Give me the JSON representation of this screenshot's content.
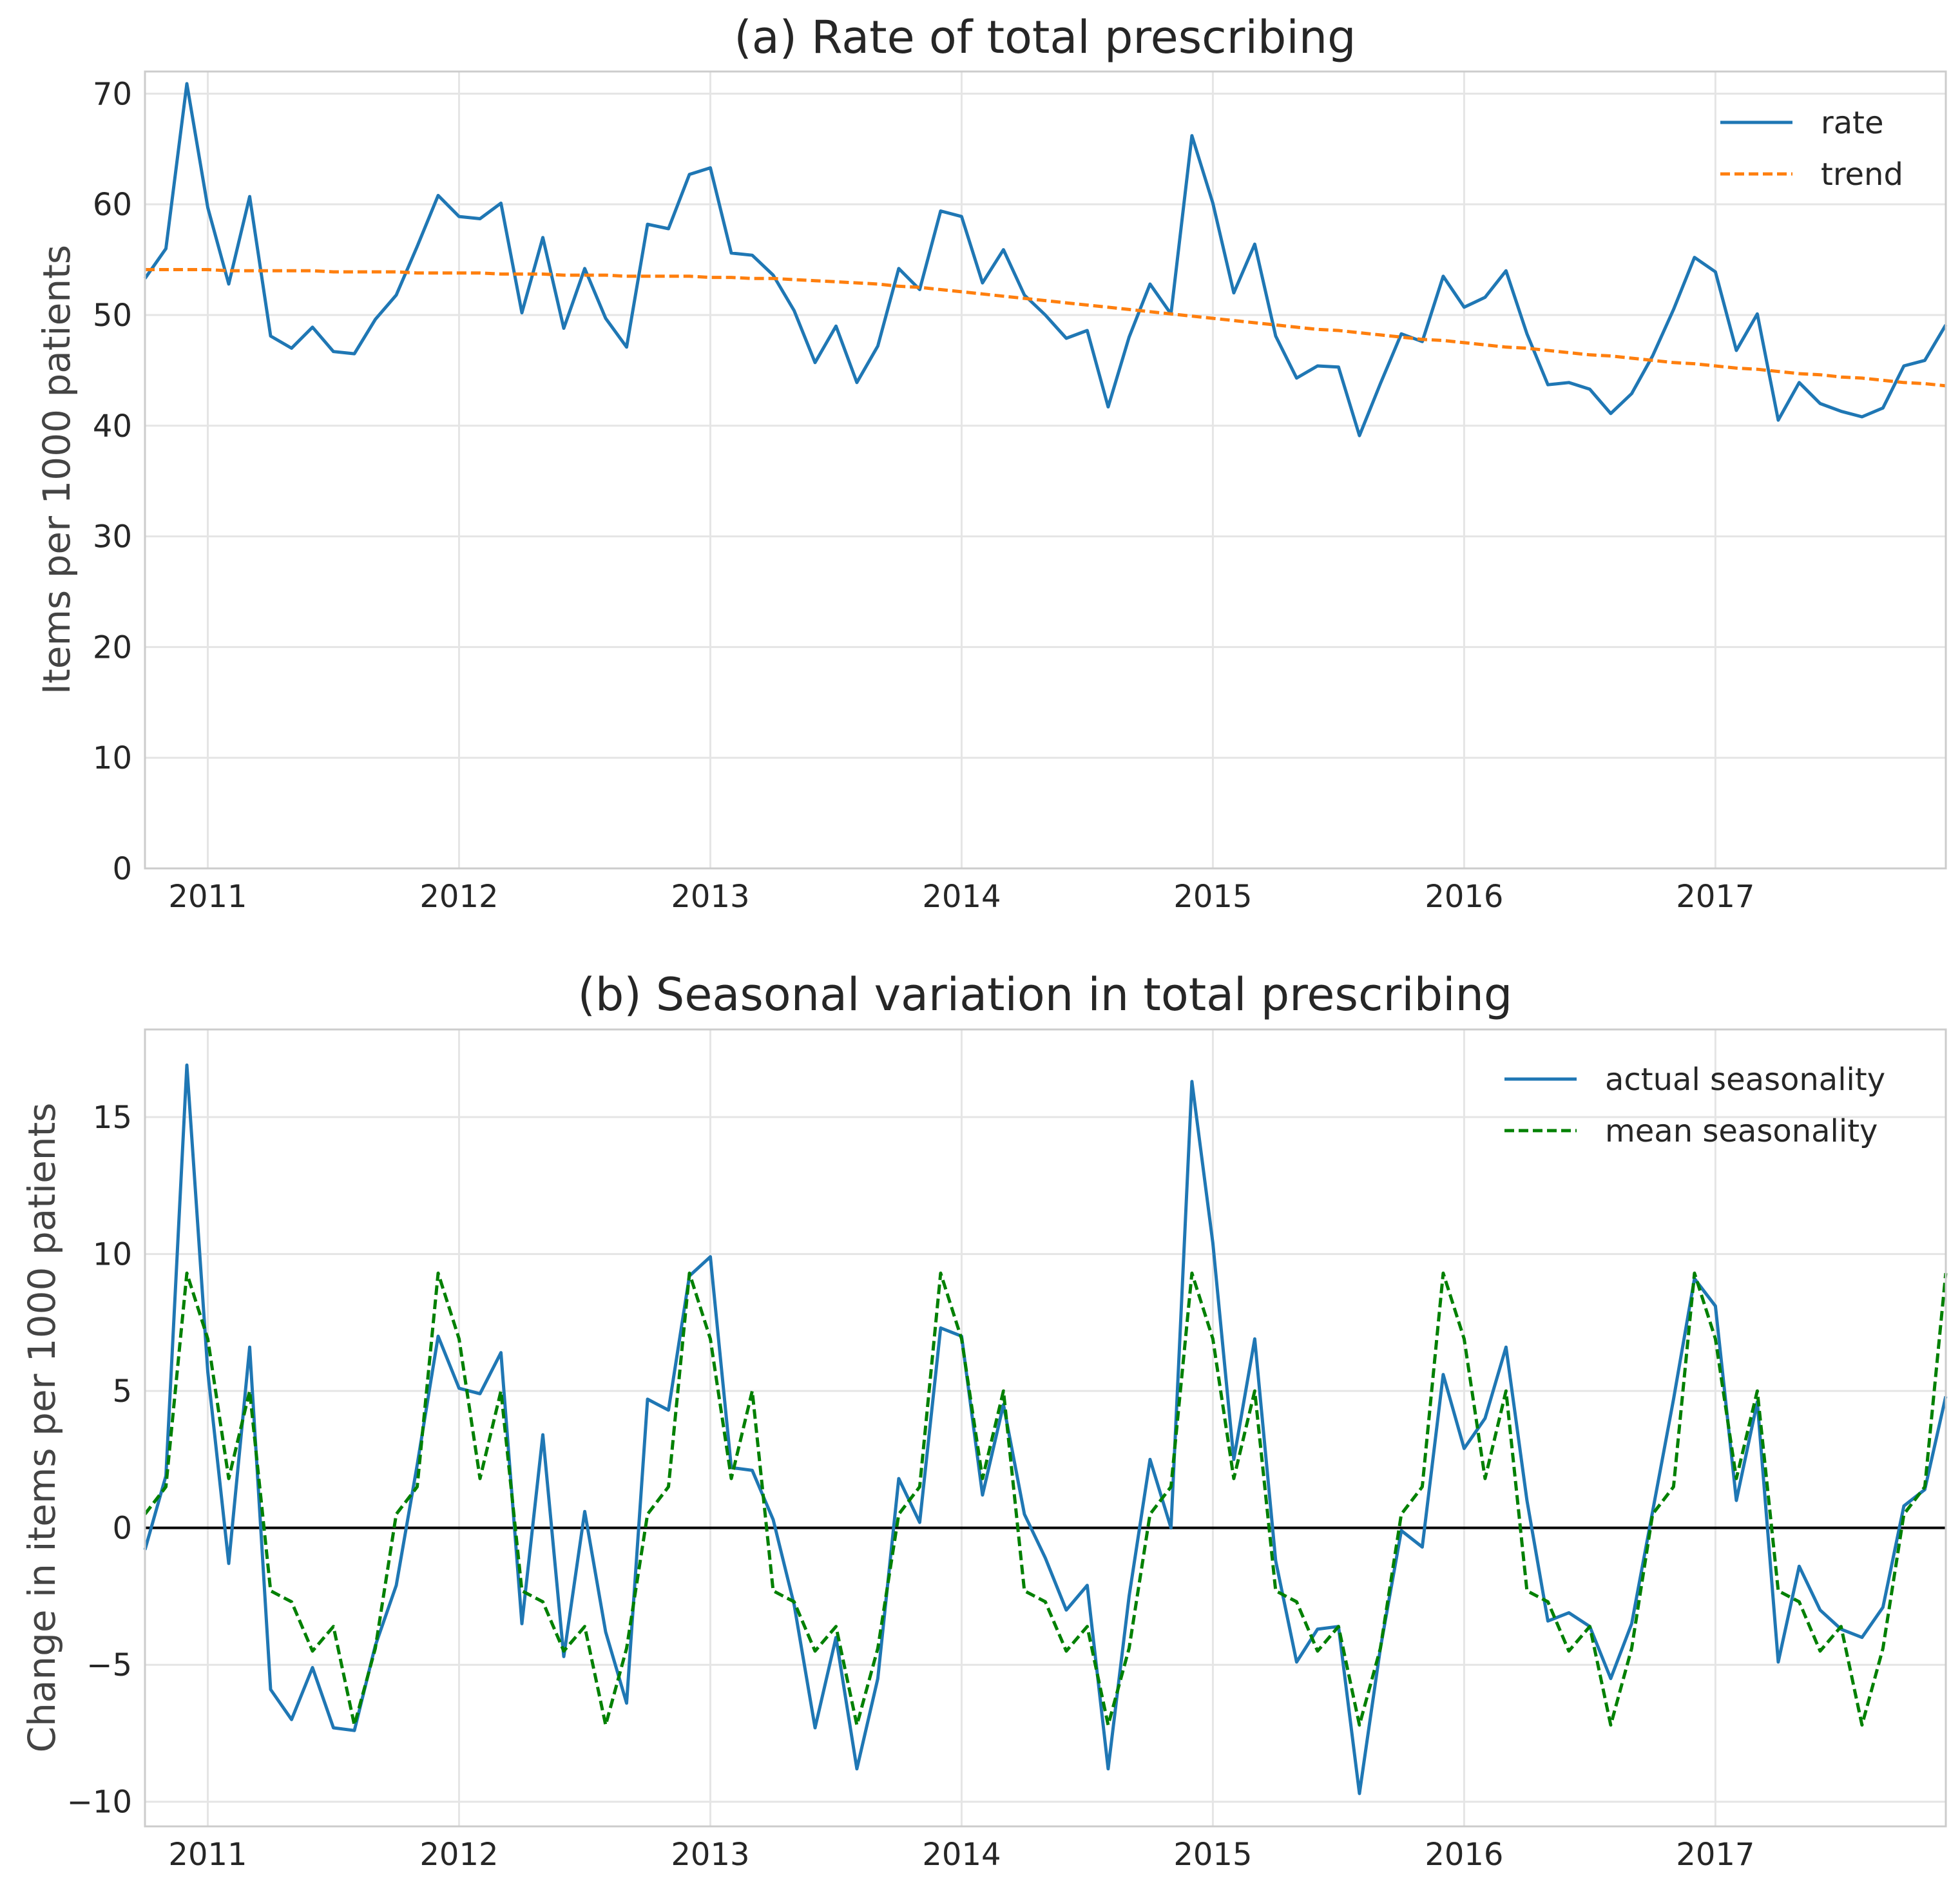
{
  "chart_data": [
    {
      "id": "a",
      "type": "line",
      "title": "(a) Rate of total prescribing",
      "ylabel": "Items per 1000 patients",
      "xlabel": "",
      "xlim": [
        2010.75,
        2017.917
      ],
      "ylim": [
        0,
        72
      ],
      "yticks": [
        0,
        10,
        20,
        30,
        40,
        50,
        60,
        70
      ],
      "yticklabels": [
        "0",
        "10",
        "20",
        "30",
        "40",
        "50",
        "60",
        "70"
      ],
      "xticks": [
        2011,
        2012,
        2013,
        2014,
        2015,
        2016,
        2017
      ],
      "xticklabels": [
        "2011",
        "2012",
        "2013",
        "2014",
        "2015",
        "2016",
        "2017"
      ],
      "grid": true,
      "legend": "top-right",
      "x_start": "2010-10",
      "x_step": "monthly",
      "series": [
        {
          "name": "rate",
          "style": "solid",
          "color": "#1f77b4",
          "values": [
            53.3,
            56.0,
            70.9,
            59.7,
            52.8,
            60.7,
            48.1,
            47.0,
            48.9,
            46.7,
            46.5,
            49.6,
            51.8,
            56.2,
            60.8,
            58.9,
            58.7,
            60.1,
            50.2,
            57.0,
            48.8,
            54.2,
            49.7,
            47.1,
            58.2,
            57.8,
            62.7,
            63.3,
            55.6,
            55.4,
            53.6,
            50.4,
            45.7,
            49.0,
            43.9,
            47.2,
            54.2,
            52.3,
            59.4,
            58.9,
            52.9,
            55.9,
            51.8,
            50.0,
            47.9,
            48.6,
            41.7,
            48.0,
            52.8,
            50.1,
            66.2,
            60.1,
            52.0,
            56.4,
            48.1,
            44.3,
            45.4,
            45.3,
            39.1,
            43.8,
            48.3,
            47.6,
            53.5,
            50.7,
            51.6,
            54.0,
            48.3,
            43.7,
            43.9,
            43.3,
            41.1,
            42.9,
            46.3,
            50.5,
            55.2,
            53.9,
            46.8,
            50.1,
            40.5,
            43.9,
            42.0,
            41.3,
            40.8,
            41.6,
            45.4,
            45.9,
            49.1
          ]
        },
        {
          "name": "trend",
          "style": "dashed",
          "color": "#ff7f0e",
          "values": [
            54.1,
            54.1,
            54.1,
            54.1,
            54.0,
            54.0,
            54.0,
            54.0,
            54.0,
            53.9,
            53.9,
            53.9,
            53.9,
            53.8,
            53.8,
            53.8,
            53.8,
            53.7,
            53.7,
            53.7,
            53.6,
            53.6,
            53.6,
            53.5,
            53.5,
            53.5,
            53.5,
            53.4,
            53.4,
            53.3,
            53.3,
            53.2,
            53.1,
            53.0,
            52.9,
            52.8,
            52.6,
            52.5,
            52.3,
            52.1,
            51.9,
            51.7,
            51.5,
            51.3,
            51.1,
            50.9,
            50.7,
            50.5,
            50.3,
            50.1,
            49.9,
            49.7,
            49.5,
            49.3,
            49.1,
            48.9,
            48.7,
            48.6,
            48.4,
            48.2,
            48.0,
            47.8,
            47.7,
            47.5,
            47.3,
            47.1,
            47.0,
            46.8,
            46.6,
            46.4,
            46.3,
            46.1,
            45.9,
            45.7,
            45.6,
            45.4,
            45.2,
            45.1,
            44.9,
            44.7,
            44.6,
            44.4,
            44.3,
            44.1,
            43.9,
            43.8,
            43.6
          ]
        }
      ]
    },
    {
      "id": "b",
      "type": "line",
      "title": "(b) Seasonal variation in total prescribing",
      "ylabel": "Change in items per 1000 patients",
      "xlabel": "",
      "xlim": [
        2010.75,
        2017.917
      ],
      "ylim": [
        -10.9,
        18.2
      ],
      "yticks": [
        -10,
        -5,
        0,
        5,
        10,
        15
      ],
      "yticklabels": [
        "−10",
        "−5",
        "0",
        "5",
        "10",
        "15"
      ],
      "xticks": [
        2011,
        2012,
        2013,
        2014,
        2015,
        2016,
        2017
      ],
      "xticklabels": [
        "2011",
        "2012",
        "2013",
        "2014",
        "2015",
        "2016",
        "2017"
      ],
      "grid": true,
      "zero_line": true,
      "legend": "top-right",
      "x_start": "2010-10",
      "x_step": "monthly",
      "series": [
        {
          "name": "actual seasonality",
          "style": "solid",
          "color": "#1f77b4",
          "values": [
            -0.8,
            1.9,
            16.9,
            5.7,
            -1.3,
            6.6,
            -5.9,
            -7.0,
            -5.1,
            -7.3,
            -7.4,
            -4.3,
            -2.1,
            2.3,
            7.0,
            5.1,
            4.9,
            6.4,
            -3.5,
            3.4,
            -4.7,
            0.6,
            -3.8,
            -6.4,
            4.7,
            4.3,
            9.2,
            9.9,
            2.2,
            2.1,
            0.3,
            -2.8,
            -7.3,
            -4.0,
            -8.8,
            -5.5,
            1.8,
            0.2,
            7.3,
            7.0,
            1.2,
            4.5,
            0.5,
            -1.1,
            -3.0,
            -2.1,
            -8.8,
            -2.5,
            2.5,
            0.0,
            16.3,
            10.4,
            2.5,
            6.9,
            -1.2,
            -4.9,
            -3.7,
            -3.6,
            -9.7,
            -4.4,
            -0.1,
            -0.7,
            5.6,
            2.9,
            4.0,
            6.6,
            1.0,
            -3.4,
            -3.1,
            -3.6,
            -5.5,
            -3.5,
            0.6,
            4.7,
            9.1,
            8.1,
            1.0,
            4.6,
            -4.9,
            -1.4,
            -3.0,
            -3.7,
            -4.0,
            -2.9,
            0.8,
            1.4,
            4.8
          ]
        },
        {
          "name": "mean seasonality",
          "style": "dashed",
          "color": "#008000",
          "values": [
            0.5,
            1.5,
            9.3,
            6.9,
            1.8,
            5.0,
            -2.3,
            -2.7,
            -4.5,
            -3.6,
            -7.2,
            -4.4,
            0.5,
            1.5,
            9.3,
            6.9,
            1.8,
            5.0,
            -2.3,
            -2.7,
            -4.5,
            -3.6,
            -7.2,
            -4.4,
            0.5,
            1.5,
            9.3,
            6.9,
            1.8,
            5.0,
            -2.3,
            -2.7,
            -4.5,
            -3.6,
            -7.2,
            -4.4,
            0.5,
            1.5,
            9.3,
            6.9,
            1.8,
            5.0,
            -2.3,
            -2.7,
            -4.5,
            -3.6,
            -7.2,
            -4.4,
            0.5,
            1.5,
            9.3,
            6.9,
            1.8,
            5.0,
            -2.3,
            -2.7,
            -4.5,
            -3.6,
            -7.2,
            -4.4,
            0.5,
            1.5,
            9.3,
            6.9,
            1.8,
            5.0,
            -2.3,
            -2.7,
            -4.5,
            -3.6,
            -7.2,
            -4.4,
            0.5,
            1.5,
            9.3,
            6.9,
            1.8,
            5.0,
            -2.3,
            -2.7,
            -4.5,
            -3.6,
            -7.2,
            -4.4,
            0.5,
            1.5,
            9.3
          ]
        }
      ]
    }
  ]
}
